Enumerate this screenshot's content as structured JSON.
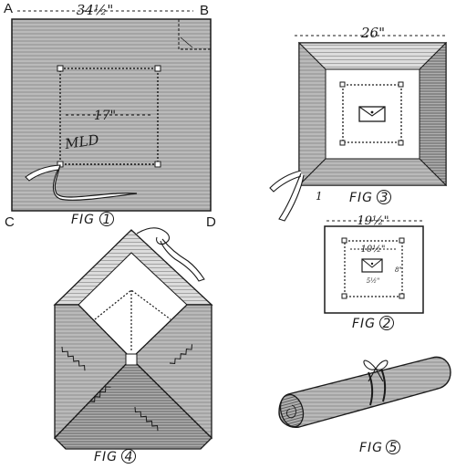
{
  "diagram": {
    "fig1": {
      "caption": "FIG",
      "number": "1",
      "width_label": "34½\"",
      "inner_label": "17\"",
      "monogram": "MLD",
      "corners": {
        "a": "A",
        "b": "B",
        "c": "C",
        "d": "D"
      }
    },
    "fig2": {
      "caption": "FIG",
      "number": "2",
      "outer_label": "19½\"",
      "inner_label": "10½\"",
      "side_label": "8\"",
      "bottom_label": "5½\""
    },
    "fig3": {
      "caption": "FIG",
      "number": "3",
      "width_label": "26\"",
      "marker": "1"
    },
    "fig4": {
      "caption": "FIG",
      "number": "4"
    },
    "fig5": {
      "caption": "FIG",
      "number": "5"
    }
  },
  "colors": {
    "ink": "#1a1a1a",
    "hatch": "#9a9a9a",
    "paper": "#ffffff"
  }
}
